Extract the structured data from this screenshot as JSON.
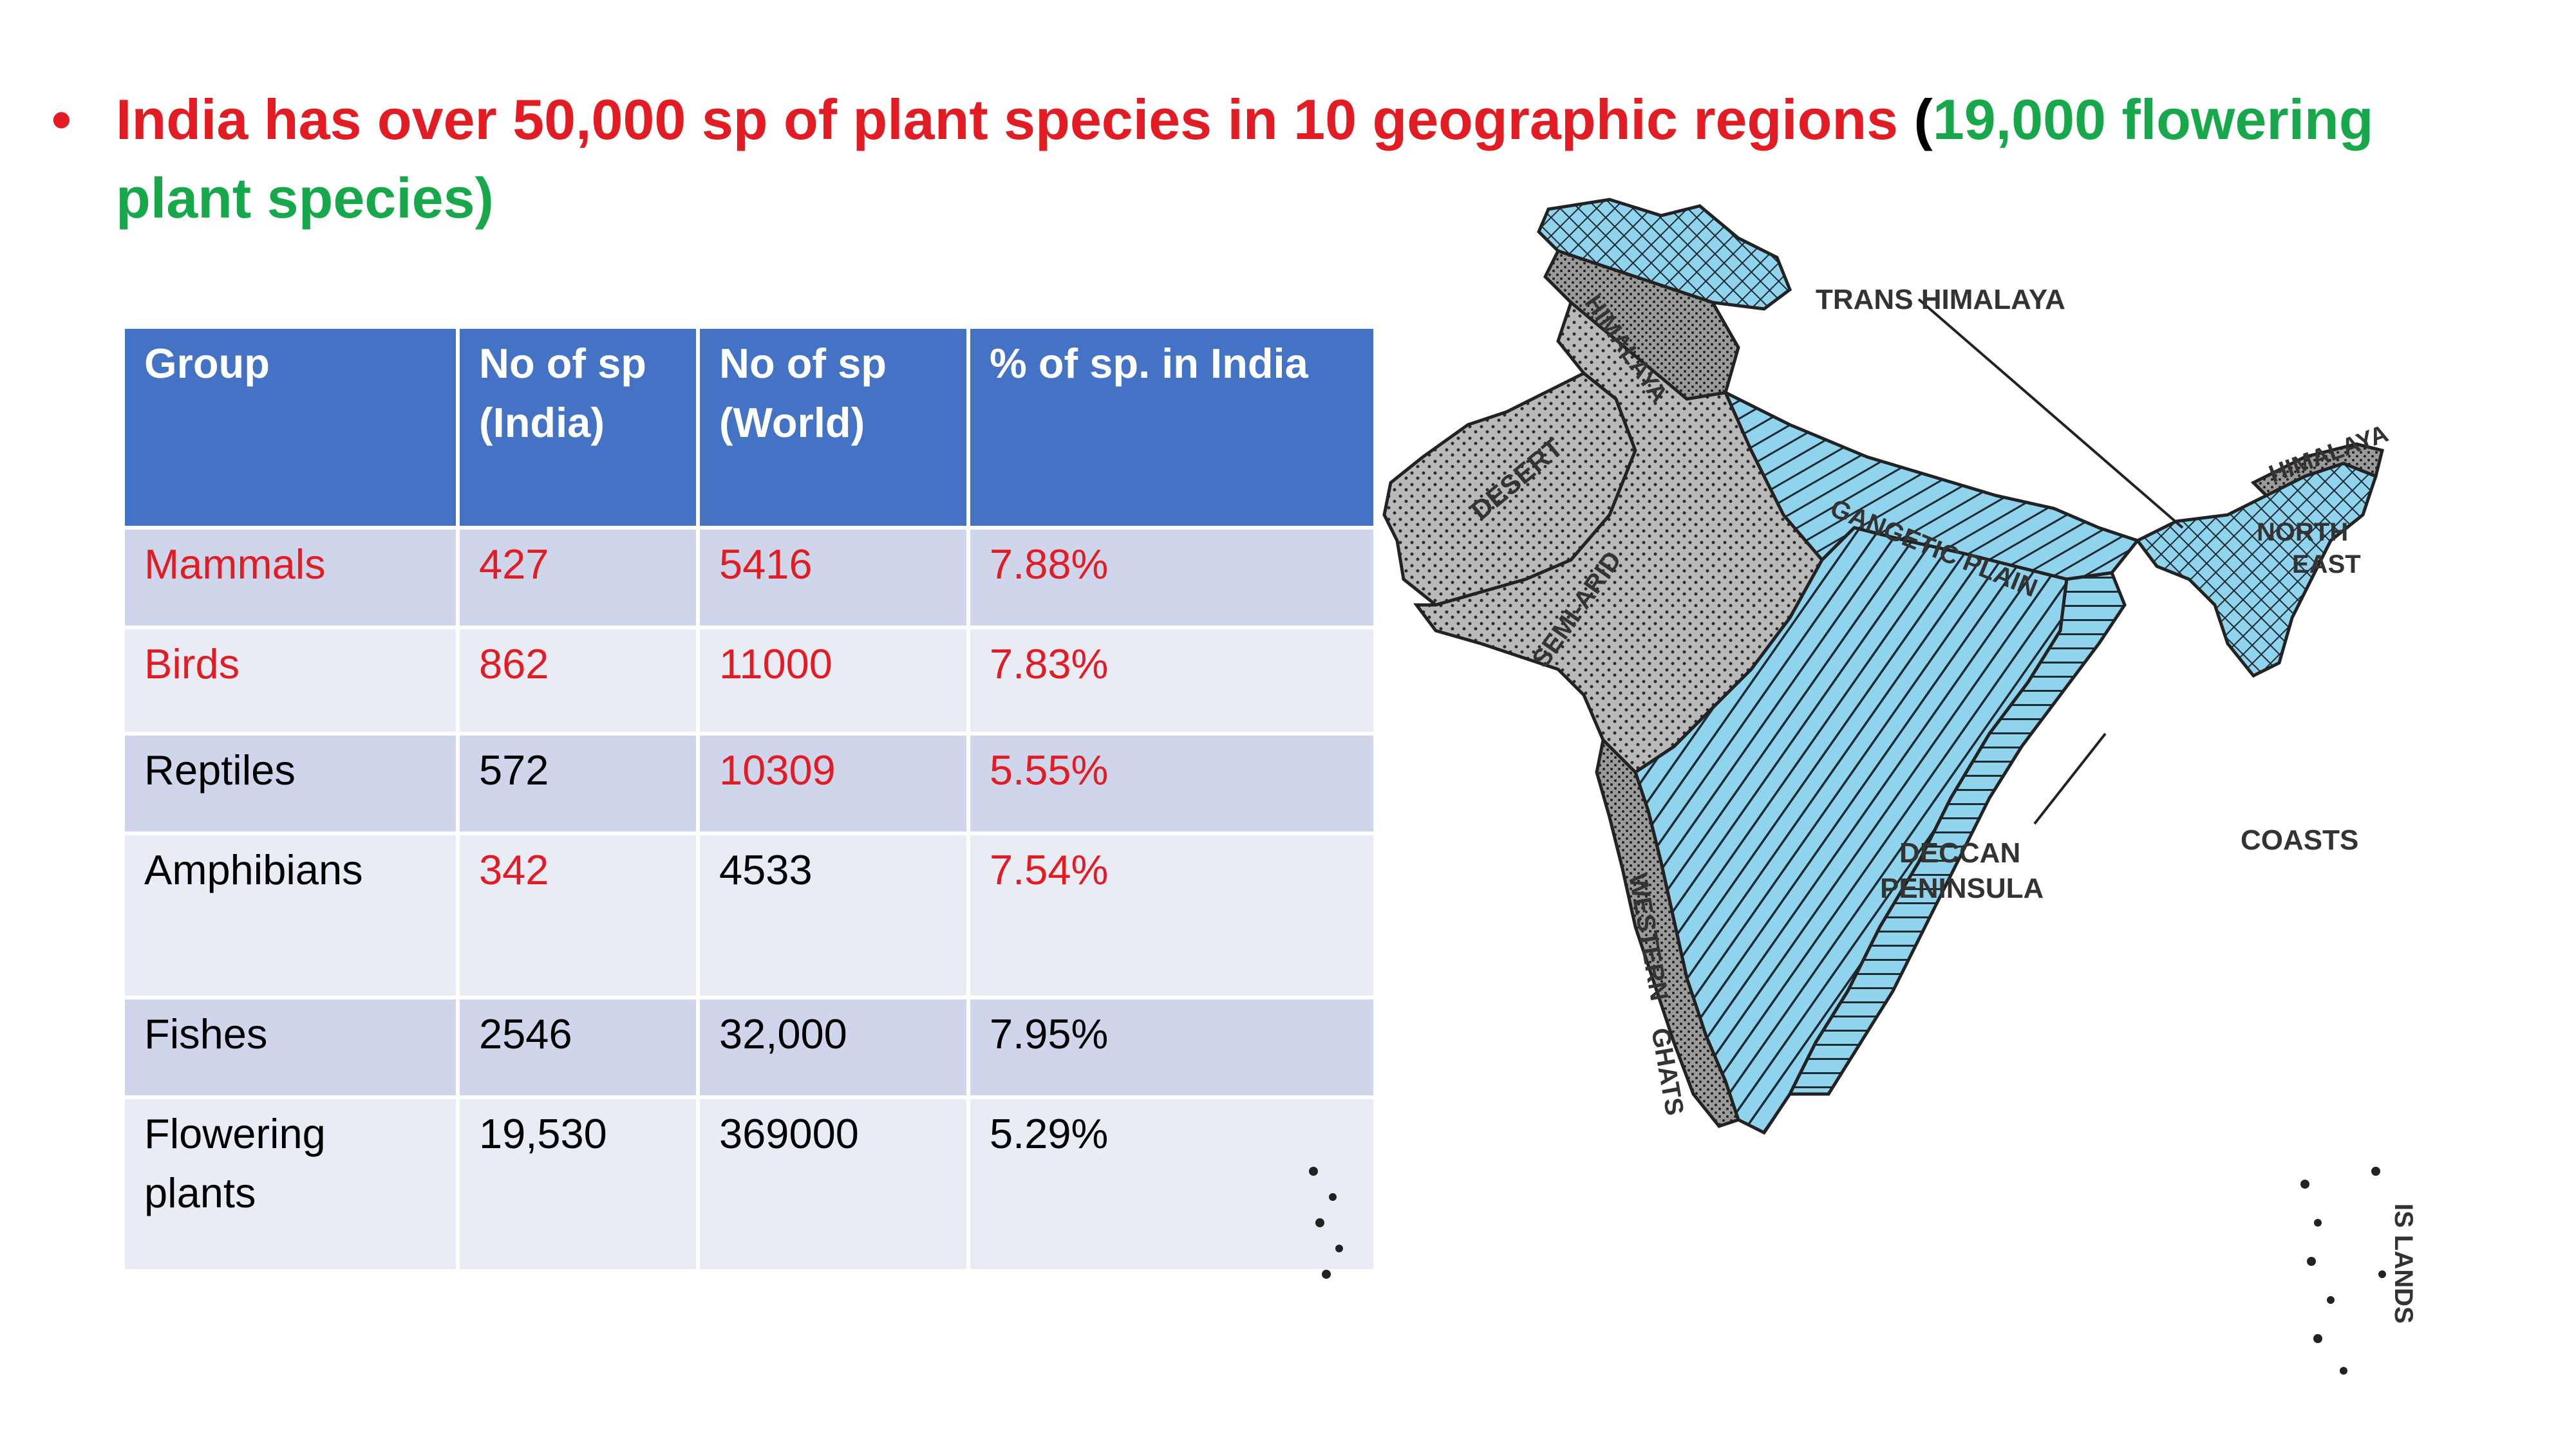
{
  "bullet": {
    "dot": "•",
    "text_red": "India has over 50,000 sp of plant species in 10 geographic regions",
    "paren_open": "(",
    "text_green": "19,000 flowering plant species)"
  },
  "table": {
    "headers": [
      "Group",
      "No of sp (India)",
      "No of sp (World)",
      "% of sp. in India"
    ],
    "rows": [
      {
        "group": "Mammals",
        "india": "427",
        "world": "5416",
        "pct": "7.88%"
      },
      {
        "group": "Birds",
        "india": "862",
        "world": "11000",
        "pct": "7.83%"
      },
      {
        "group": "Reptiles",
        "india": "572",
        "world": "10309",
        "pct": "5.55%"
      },
      {
        "group": "Amphibians",
        "india": "342",
        "world": "4533",
        "pct": "7.54%"
      },
      {
        "group": "Fishes",
        "india": "2546",
        "world": "32,000",
        "pct": "7.95%"
      },
      {
        "group": "Flowering plants",
        "india": "19,530",
        "world": "369000",
        "pct": "5.29%"
      }
    ]
  },
  "map": {
    "labels": {
      "trans_himalaya": "TRANS HIMALAYA",
      "himalaya_west": "HIMALAYA",
      "himalaya_east": "HIMALAYA",
      "desert": "DESERT",
      "semi_arid": "SEMI-ARID",
      "gangetic_plain": "GANGETIC PLAIN",
      "north": "NORTH",
      "east": "EAST",
      "coasts": "COASTS",
      "deccan": "DECCAN",
      "peninsula": "PENINSULA",
      "western": "WESTERN",
      "ghats": "GHATS",
      "islands": "IS LANDS"
    },
    "colors": {
      "water_fill": "#8fd3ec",
      "gray_fill": "#b9b9b9",
      "outline": "#222222"
    }
  }
}
